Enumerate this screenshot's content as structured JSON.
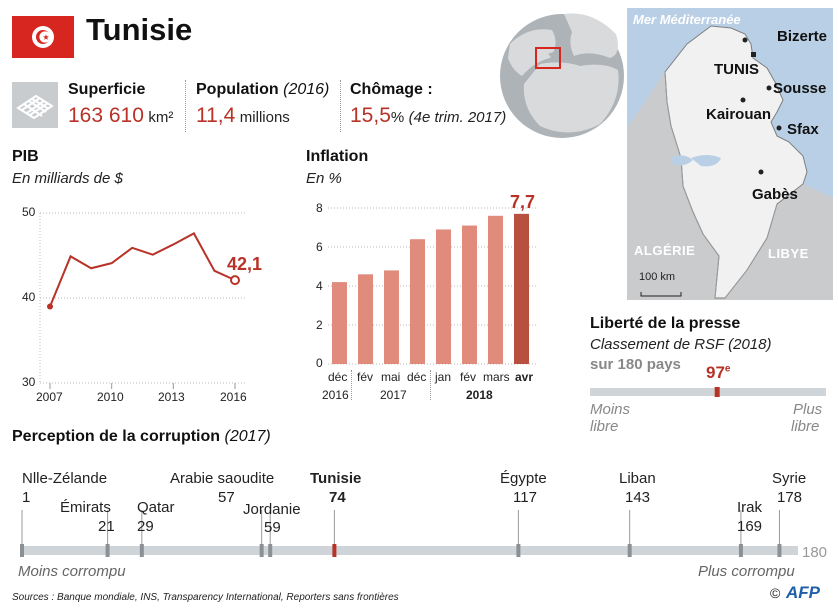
{
  "header": {
    "title": "Tunisie",
    "flag_color": "#d7261f",
    "accent": "#b83227"
  },
  "stats": {
    "area": {
      "label": "Superficie",
      "value": "163 610",
      "unit": "km²"
    },
    "population": {
      "label": "Population",
      "year": "(2016)",
      "value": "11,4",
      "unit": "millions"
    },
    "unemployment": {
      "label": "Chômage :",
      "value": "15,5",
      "unit": "%",
      "note": "(4e trim. 2017)"
    }
  },
  "pib": {
    "title": "PIB",
    "subtitle": "En milliards de $",
    "y_ticks": [
      "50",
      "40",
      "30"
    ],
    "x_ticks": [
      "2007",
      "2010",
      "2013",
      "2016"
    ],
    "last_label": "42,1"
  },
  "inflation": {
    "title": "Inflation",
    "subtitle": "En %",
    "y_ticks": [
      "8",
      "6",
      "4",
      "2",
      "0"
    ],
    "month_labels": [
      "déc",
      "fév",
      "mai",
      "déc",
      "jan",
      "fév",
      "mars",
      "avr"
    ],
    "year_labels": [
      "2016",
      "2017",
      "2018"
    ],
    "last_label": "7,7"
  },
  "chart_data": [
    {
      "type": "line",
      "title": "PIB",
      "ylabel": "En milliards de $",
      "x": [
        2007,
        2008,
        2009,
        2010,
        2011,
        2012,
        2013,
        2014,
        2015,
        2016
      ],
      "values": [
        39.0,
        44.9,
        43.5,
        44.1,
        45.9,
        45.1,
        46.3,
        47.6,
        43.2,
        42.1
      ],
      "ylim": [
        30,
        50
      ],
      "x_ticks": [
        "2007",
        "2010",
        "2013",
        "2016"
      ]
    },
    {
      "type": "bar",
      "title": "Inflation",
      "ylabel": "En %",
      "categories": [
        "déc 2016",
        "fév 2017",
        "mai 2017",
        "déc 2017",
        "jan 2018",
        "fév 2018",
        "mars 2018",
        "avr 2018"
      ],
      "values": [
        4.2,
        4.6,
        4.8,
        6.4,
        6.9,
        7.1,
        7.6,
        7.7
      ],
      "ylim": [
        0,
        8
      ]
    }
  ],
  "map": {
    "sea": "Mer Méditerranée",
    "cities": [
      "Bizerte",
      "TUNIS",
      "Sousse",
      "Kairouan",
      "Sfax",
      "Gabès"
    ],
    "countries": [
      "ALGÉRIE",
      "LIBYE"
    ],
    "scale": "100 km"
  },
  "press": {
    "title": "Liberté de la presse",
    "subtitle": "Classement de RSF (2018)",
    "total": "sur 180 pays",
    "rank_num": "97",
    "rank_suffix": "e",
    "rank_value": 97,
    "rank_max": 180,
    "left_1": "Moins",
    "left_2": "libre",
    "right_1": "Plus",
    "right_2": "libre"
  },
  "corruption": {
    "title": "Perception de la corruption",
    "year": "(2017)",
    "max": "180",
    "left_label": "Moins corrompu",
    "right_label": "Plus corrompu",
    "countries": [
      {
        "name": "Nlle-Zélande",
        "score": "1",
        "rank": 1
      },
      {
        "name": "Émirats",
        "score": "21",
        "rank": 21
      },
      {
        "name": "Qatar",
        "score": "29",
        "rank": 29
      },
      {
        "name": "Arabie saoudite",
        "score": "57",
        "rank": 57
      },
      {
        "name": "Jordanie",
        "score": "59",
        "rank": 59
      },
      {
        "name": "Tunisie",
        "score": "74",
        "rank": 74
      },
      {
        "name": "Égypte",
        "score": "117",
        "rank": 117
      },
      {
        "name": "Liban",
        "score": "143",
        "rank": 143
      },
      {
        "name": "Irak",
        "score": "169",
        "rank": 169
      },
      {
        "name": "Syrie",
        "score": "178",
        "rank": 178
      }
    ]
  },
  "footer": {
    "sources": "Sources : Banque mondiale, INS, Transparency International, Reporters sans frontières",
    "copyright": "©",
    "agency": "AFP"
  }
}
